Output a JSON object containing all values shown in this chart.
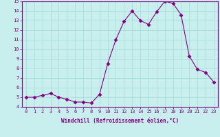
{
  "x": [
    0,
    1,
    2,
    3,
    4,
    5,
    6,
    7,
    8,
    9,
    10,
    11,
    12,
    13,
    14,
    15,
    16,
    17,
    18,
    19,
    20,
    21,
    22,
    23
  ],
  "y": [
    5.0,
    5.0,
    5.2,
    5.4,
    5.0,
    4.8,
    4.5,
    4.5,
    4.4,
    5.3,
    8.5,
    11.0,
    12.9,
    14.0,
    13.0,
    12.6,
    13.9,
    15.0,
    14.8,
    13.6,
    9.3,
    7.9,
    7.6,
    6.6
  ],
  "line_color": "#800080",
  "marker": "D",
  "marker_size": 2.5,
  "bg_color": "#c8eeee",
  "grid_color": "#aadddd",
  "xlabel": "Windchill (Refroidissement éolien,°C)",
  "ylabel": "",
  "ylim": [
    4,
    15
  ],
  "xlim": [
    -0.5,
    23.5
  ],
  "yticks": [
    4,
    5,
    6,
    7,
    8,
    9,
    10,
    11,
    12,
    13,
    14,
    15
  ],
  "xticks": [
    0,
    1,
    2,
    3,
    4,
    5,
    6,
    7,
    8,
    9,
    10,
    11,
    12,
    13,
    14,
    15,
    16,
    17,
    18,
    19,
    20,
    21,
    22,
    23
  ],
  "tick_color": "#800080",
  "label_color": "#800080",
  "spine_color": "#800080",
  "tick_fontsize": 5,
  "xlabel_fontsize": 5.5
}
